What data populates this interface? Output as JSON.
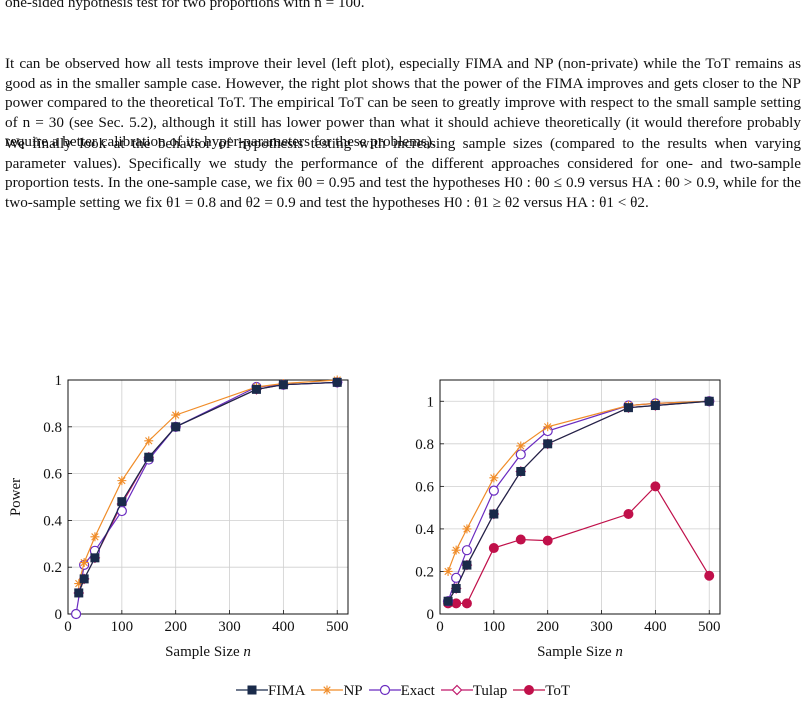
{
  "paragraphs": [
    "one-sided hypothesis test for two proportions with n = 100.",
    "It can be observed how all tests improve their level (left plot), especially FIMA and NP (non-private) while the ToT remains as good as in the smaller sample case. However, the right plot shows that the power of the FIMA improves and gets closer to the NP power compared to the theoretical ToT. The empirical ToT can be seen to greatly improve with respect to the small sample setting of n = 30 (see Sec. 5.2), although it still has lower power than what it should achieve theoretically (it would therefore probably require a better calibration of its hyper-parameters for these problems).",
    "We finally look at the behavior of hypothesis testing with increasing sample sizes (compared to the results when varying parameter values). Specifically we study the performance of the different approaches considered for one- and two-sample proportion tests. In the one-sample case, we fix θ0 = 0.95 and test the hypotheses H0 : θ0 ≤ 0.9 versus HA : θ0 > 0.9, while for the two-sample setting we fix θ1 = 0.8 and θ2 = 0.9 and test the hypotheses H0 : θ1 ≥ θ2 versus HA : θ1 < θ2."
  ],
  "colors": {
    "FIMA": "#1a2a4a",
    "NP": "#f08c28",
    "Exact": "#6a2bc0",
    "Tulap": "#c0186a",
    "ToT": "#c0104a"
  },
  "chart_data": [
    {
      "type": "line",
      "xlabel": "Sample Size n",
      "ylabel": "Power",
      "xlim": [
        0,
        520
      ],
      "ylim": [
        0,
        1
      ],
      "xticks": [
        "0",
        "100",
        "200",
        "300",
        "400",
        "500"
      ],
      "yticks": [
        "0",
        "0.2",
        "0.4",
        "0.6",
        "0.8",
        "1"
      ],
      "grid": true,
      "series": [
        {
          "name": "FIMA",
          "marker": "square",
          "x": [
            20,
            30,
            50,
            100,
            150,
            200,
            350,
            400,
            500
          ],
          "y": [
            0.09,
            0.15,
            0.24,
            0.48,
            0.67,
            0.8,
            0.96,
            0.98,
            0.99
          ]
        },
        {
          "name": "NP",
          "marker": "star",
          "x": [
            20,
            30,
            50,
            100,
            150,
            200,
            350,
            400,
            500
          ],
          "y": [
            0.13,
            0.22,
            0.33,
            0.57,
            0.74,
            0.85,
            0.97,
            0.985,
            1.0
          ]
        },
        {
          "name": "Exact",
          "marker": "circle",
          "x": [
            15,
            30,
            50,
            100,
            150,
            200,
            350,
            400,
            500
          ],
          "y": [
            0.0,
            0.21,
            0.27,
            0.44,
            0.66,
            0.8,
            0.97,
            0.98,
            0.99
          ]
        },
        {
          "name": "Tulap",
          "marker": "diamond",
          "x": [
            20,
            30,
            50,
            100,
            150,
            200,
            350,
            400,
            500
          ],
          "y": [
            0.09,
            0.15,
            0.24,
            0.47,
            0.67,
            0.8,
            0.96,
            0.98,
            0.99
          ]
        }
      ]
    },
    {
      "type": "line",
      "xlabel": "Sample Size n",
      "ylabel": "",
      "xlim": [
        0,
        520
      ],
      "ylim": [
        0,
        1.1
      ],
      "xticks": [
        "0",
        "100",
        "200",
        "300",
        "400",
        "500"
      ],
      "yticks": [
        "0",
        "0.2",
        "0.4",
        "0.6",
        "0.8",
        "1"
      ],
      "grid": true,
      "series": [
        {
          "name": "FIMA",
          "marker": "square",
          "x": [
            15,
            30,
            50,
            100,
            150,
            200,
            350,
            400,
            500
          ],
          "y": [
            0.06,
            0.12,
            0.23,
            0.47,
            0.67,
            0.8,
            0.97,
            0.98,
            1.0
          ]
        },
        {
          "name": "NP",
          "marker": "star",
          "x": [
            15,
            30,
            50,
            100,
            150,
            200,
            350,
            400,
            500
          ],
          "y": [
            0.2,
            0.3,
            0.4,
            0.64,
            0.79,
            0.88,
            0.98,
            0.99,
            1.0
          ]
        },
        {
          "name": "Exact",
          "marker": "circle",
          "x": [
            15,
            30,
            50,
            100,
            150,
            200,
            350,
            400,
            500
          ],
          "y": [
            0.06,
            0.17,
            0.3,
            0.58,
            0.75,
            0.86,
            0.98,
            0.99,
            1.0
          ]
        },
        {
          "name": "Tulap",
          "marker": "diamond",
          "x": [
            15,
            30,
            50,
            100,
            150,
            200,
            350,
            400,
            500
          ],
          "y": [
            0.06,
            0.12,
            0.23,
            0.47,
            0.67,
            0.8,
            0.97,
            0.98,
            1.0
          ]
        },
        {
          "name": "ToT",
          "marker": "dot",
          "x": [
            15,
            30,
            50,
            100,
            150,
            200,
            350,
            400,
            500
          ],
          "y": [
            0.05,
            0.05,
            0.05,
            0.31,
            0.35,
            0.345,
            0.47,
            0.6,
            0.18
          ]
        }
      ]
    }
  ],
  "legend": {
    "items": [
      {
        "name": "FIMA",
        "marker": "square"
      },
      {
        "name": "NP",
        "marker": "star"
      },
      {
        "name": "Exact",
        "marker": "circle"
      },
      {
        "name": "Tulap",
        "marker": "diamond"
      },
      {
        "name": "ToT",
        "marker": "dot"
      }
    ]
  }
}
